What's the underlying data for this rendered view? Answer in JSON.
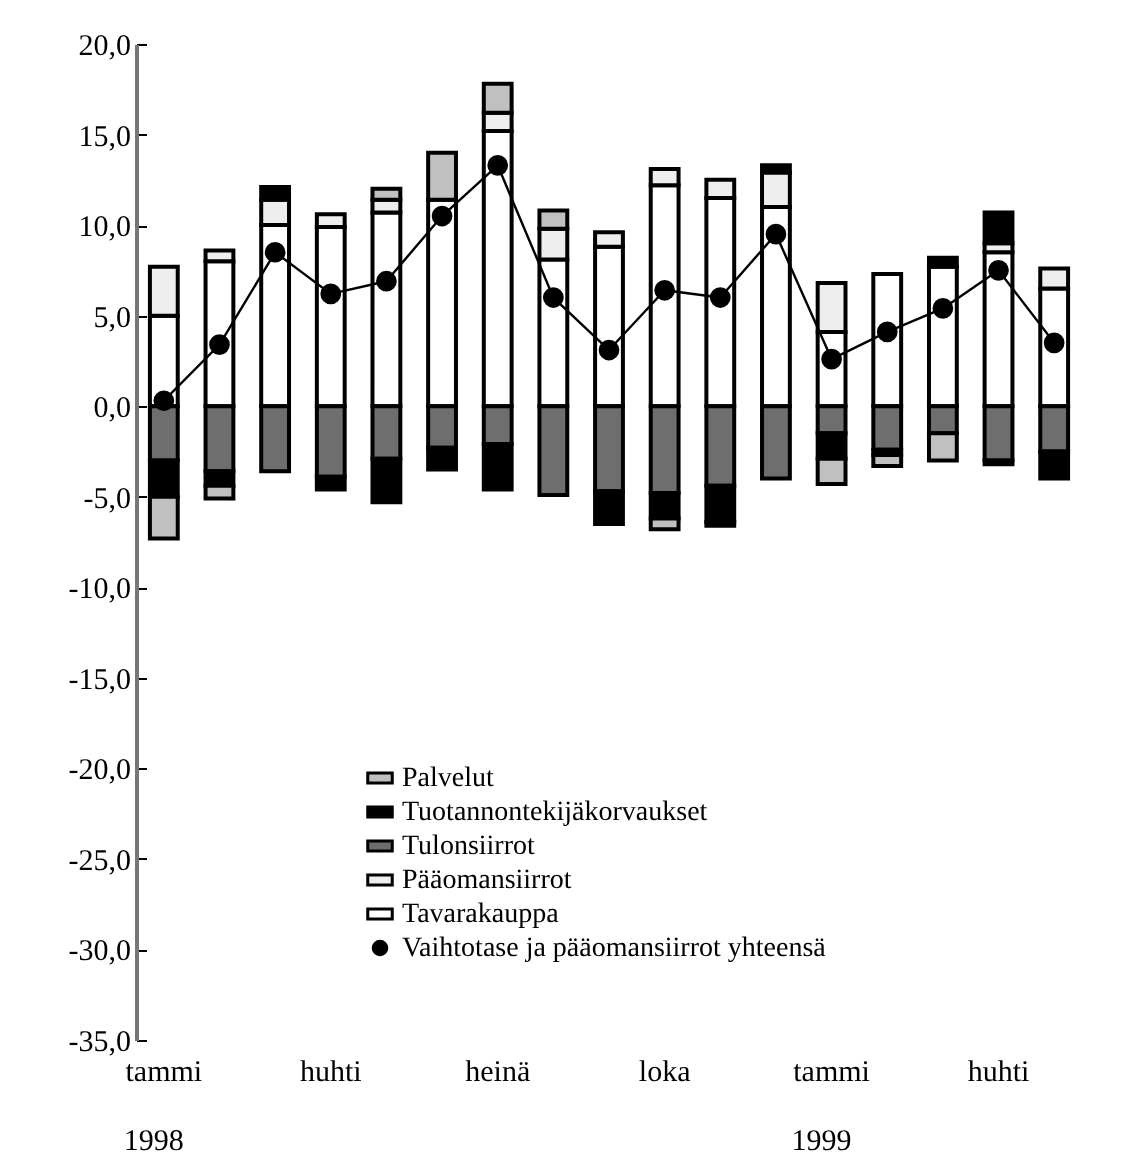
{
  "chart_data": {
    "type": "bar",
    "stacked": true,
    "categories": [
      "tammi",
      null,
      null,
      "huhti",
      null,
      null,
      "heinä",
      null,
      null,
      "loka",
      null,
      null,
      "tammi",
      null,
      null,
      "huhti",
      null
    ],
    "ylim": [
      -35,
      20
    ],
    "yticks": [
      {
        "value": -35,
        "label": "-35,0"
      },
      {
        "value": -30,
        "label": "-30,0"
      },
      {
        "value": -25,
        "label": "-25,0"
      },
      {
        "value": -20,
        "label": "-20,0"
      },
      {
        "value": -15,
        "label": "-15,0"
      },
      {
        "value": -10,
        "label": "-10,0"
      },
      {
        "value": -5,
        "label": "-5,0"
      },
      {
        "value": 0,
        "label": "0,0"
      },
      {
        "value": 5,
        "label": "5,0"
      },
      {
        "value": 10,
        "label": "10,0"
      },
      {
        "value": 15,
        "label": "15,0"
      },
      {
        "value": 20,
        "label": "20,0"
      }
    ],
    "series": [
      {
        "name": "Tavarakauppa",
        "color": "#ffffff",
        "values": [
          5.0,
          8.0,
          10.0,
          9.9,
          10.7,
          11.4,
          15.2,
          8.1,
          8.8,
          12.2,
          11.5,
          11.0,
          4.1,
          7.3,
          7.7,
          8.5,
          6.5
        ]
      },
      {
        "name": "Pääomansiirrot",
        "color": "#eeeeee",
        "values": [
          2.7,
          0.6,
          1.4,
          0.7,
          0.7,
          null,
          1.0,
          1.7,
          0.8,
          0.9,
          1.0,
          1.9,
          2.7,
          null,
          null,
          0.5,
          1.1
        ]
      },
      {
        "name": "Tulonsiirrot",
        "color": "#6e6e6e",
        "values": [
          -3.0,
          -3.6,
          -3.6,
          -3.9,
          -2.9,
          -2.3,
          -2.1,
          -4.9,
          -4.7,
          -4.8,
          -4.4,
          -4.0,
          -1.5,
          -2.4,
          -1.5,
          -3.0,
          -2.5
        ]
      },
      {
        "name": "Tuotannontekijäkorvaukset",
        "color": "#000000",
        "values": [
          -2.0,
          -0.8,
          0.7,
          -0.7,
          -2.4,
          -1.2,
          -2.5,
          null,
          -1.8,
          -1.4,
          -2.0,
          0.4,
          -1.4,
          -0.3,
          0.5,
          1.7,
          -1.5
        ]
      },
      {
        "name": "Palvelut",
        "color": "#c0c0c0",
        "values": [
          -2.3,
          -0.7,
          null,
          null,
          0.6,
          2.6,
          1.6,
          1.0,
          null,
          -0.6,
          -0.2,
          null,
          -1.4,
          -0.6,
          -1.5,
          -0.2,
          null
        ]
      },
      {
        "name": "Vaihtotase ja pääomansiirrot yhteensä",
        "type": "line",
        "color": "#000000",
        "values": [
          0.3,
          3.4,
          8.5,
          6.2,
          6.9,
          10.5,
          13.3,
          6.0,
          3.1,
          6.4,
          6.0,
          9.5,
          2.6,
          4.1,
          5.4,
          7.5,
          3.5
        ]
      }
    ],
    "marker": "circle",
    "legend": "bottom",
    "grid": false,
    "annotations": [
      "1998",
      "1999"
    ]
  }
}
